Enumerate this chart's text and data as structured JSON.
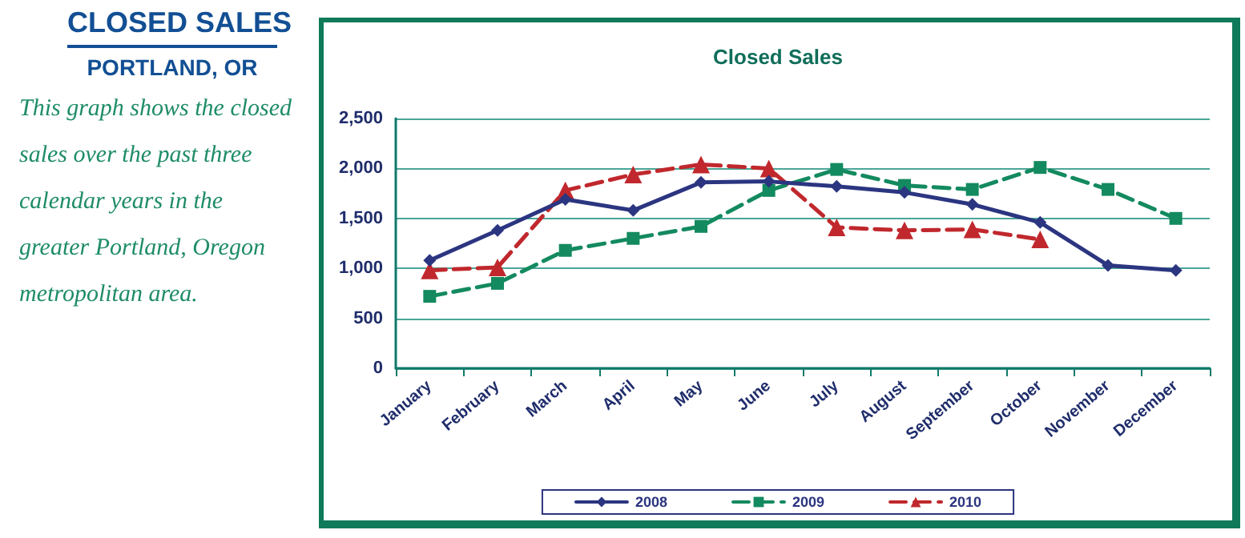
{
  "chart_data": {
    "type": "line",
    "title": "Closed Sales",
    "annotations": [
      "CLOSED SALES",
      "PORTLAND, OR",
      "This graph shows the closed sales over the past three calendar years in the greater Portland, Oregon metropolitan area."
    ],
    "categories": [
      "January",
      "February",
      "March",
      "April",
      "May",
      "June",
      "July",
      "August",
      "September",
      "October",
      "November",
      "December"
    ],
    "series": [
      {
        "name": "2008",
        "color": "#2b3580",
        "marker": "diamond",
        "line_style": "solid",
        "values": [
          1080,
          1380,
          1690,
          1580,
          1860,
          1870,
          1820,
          1760,
          1640,
          1460,
          1030,
          980
        ]
      },
      {
        "name": "2009",
        "color": "#138a5f",
        "marker": "square",
        "line_style": "dashed",
        "values": [
          720,
          850,
          1180,
          1300,
          1420,
          1780,
          1990,
          1830,
          1790,
          2010,
          1790,
          1500
        ]
      },
      {
        "name": "2010",
        "color": "#c0282d",
        "marker": "triangle",
        "line_style": "dashed",
        "values": [
          980,
          1010,
          1780,
          1940,
          2040,
          2000,
          1410,
          1380,
          1390,
          1290,
          null,
          null
        ]
      }
    ],
    "ylim": [
      0,
      2500
    ],
    "yticks": [
      0,
      500,
      {
        "value": 1000,
        "label": "1,000"
      },
      {
        "value": 1500,
        "label": "1,500"
      },
      {
        "value": 2000,
        "label": "2,000"
      },
      {
        "value": 2500,
        "label": "2,500"
      }
    ],
    "grid": "y",
    "legend": "bottom"
  }
}
